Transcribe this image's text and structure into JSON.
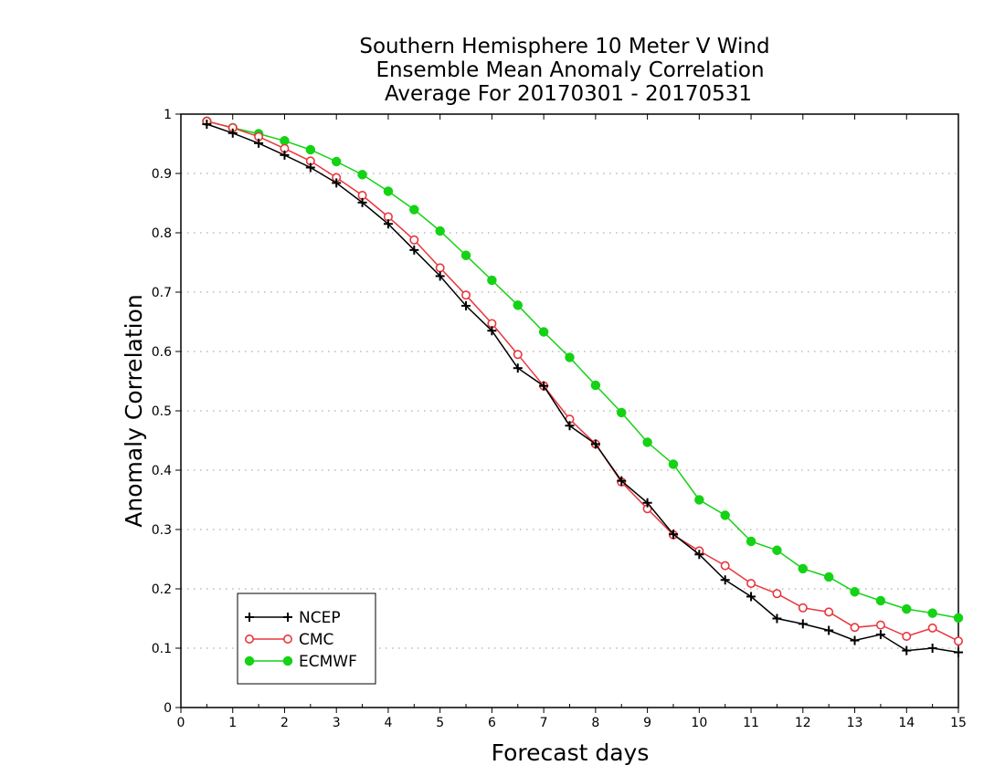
{
  "chart_data": {
    "type": "line",
    "title": [
      "Southern Hemisphere 10 Meter V Wind",
      "Ensemble Mean Anomaly Correlation",
      "Average For 20170301 - 20170531"
    ],
    "xlabel": "Forecast days",
    "ylabel": "Anomaly Correlation",
    "xlim": [
      0,
      15
    ],
    "ylim": [
      0,
      1
    ],
    "x_ticks": [
      "0",
      "1",
      "2",
      "3",
      "4",
      "5",
      "6",
      "7",
      "8",
      "9",
      "10",
      "11",
      "12",
      "13",
      "14",
      "15"
    ],
    "y_ticks": [
      "0",
      "0.1",
      "0.2",
      "0.3",
      "0.4",
      "0.5",
      "0.6",
      "0.7",
      "0.8",
      "0.9",
      "1"
    ],
    "grid": "horizontal dotted",
    "legend_position": "bottom-left",
    "x": [
      0.5,
      1,
      1.5,
      2,
      2.5,
      3,
      3.5,
      4,
      4.5,
      5,
      5.5,
      6,
      6.5,
      7,
      7.5,
      8,
      8.5,
      9,
      9.5,
      10,
      10.5,
      11,
      11.5,
      12,
      12.5,
      13,
      13.5,
      14,
      14.5,
      15
    ],
    "series": [
      {
        "name": "NCEP",
        "color": "#000000",
        "marker": "plus",
        "values": [
          0.983,
          0.968,
          0.951,
          0.931,
          0.91,
          0.884,
          0.851,
          0.815,
          0.771,
          0.727,
          0.677,
          0.635,
          0.572,
          0.542,
          0.475,
          0.444,
          0.382,
          0.345,
          0.292,
          0.258,
          0.215,
          0.187,
          0.15,
          0.141,
          0.13,
          0.113,
          0.123,
          0.096,
          0.1,
          0.093
        ]
      },
      {
        "name": "CMC",
        "color": "#e8363c",
        "marker": "open-circle",
        "values": [
          0.988,
          0.977,
          0.962,
          0.942,
          0.921,
          0.893,
          0.863,
          0.827,
          0.788,
          0.741,
          0.695,
          0.647,
          0.595,
          0.542,
          0.486,
          0.444,
          0.38,
          0.335,
          0.291,
          0.264,
          0.239,
          0.209,
          0.192,
          0.168,
          0.161,
          0.135,
          0.139,
          0.12,
          0.134,
          0.112
        ]
      },
      {
        "name": "ECMWF",
        "color": "#14d214",
        "marker": "filled-circle",
        "values": [
          0.988,
          0.977,
          0.967,
          0.955,
          0.94,
          0.92,
          0.898,
          0.87,
          0.839,
          0.803,
          0.762,
          0.72,
          0.678,
          0.633,
          0.59,
          0.543,
          0.497,
          0.447,
          0.41,
          0.35,
          0.324,
          0.28,
          0.265,
          0.234,
          0.22,
          0.195,
          0.18,
          0.166,
          0.159,
          0.151
        ]
      }
    ]
  }
}
